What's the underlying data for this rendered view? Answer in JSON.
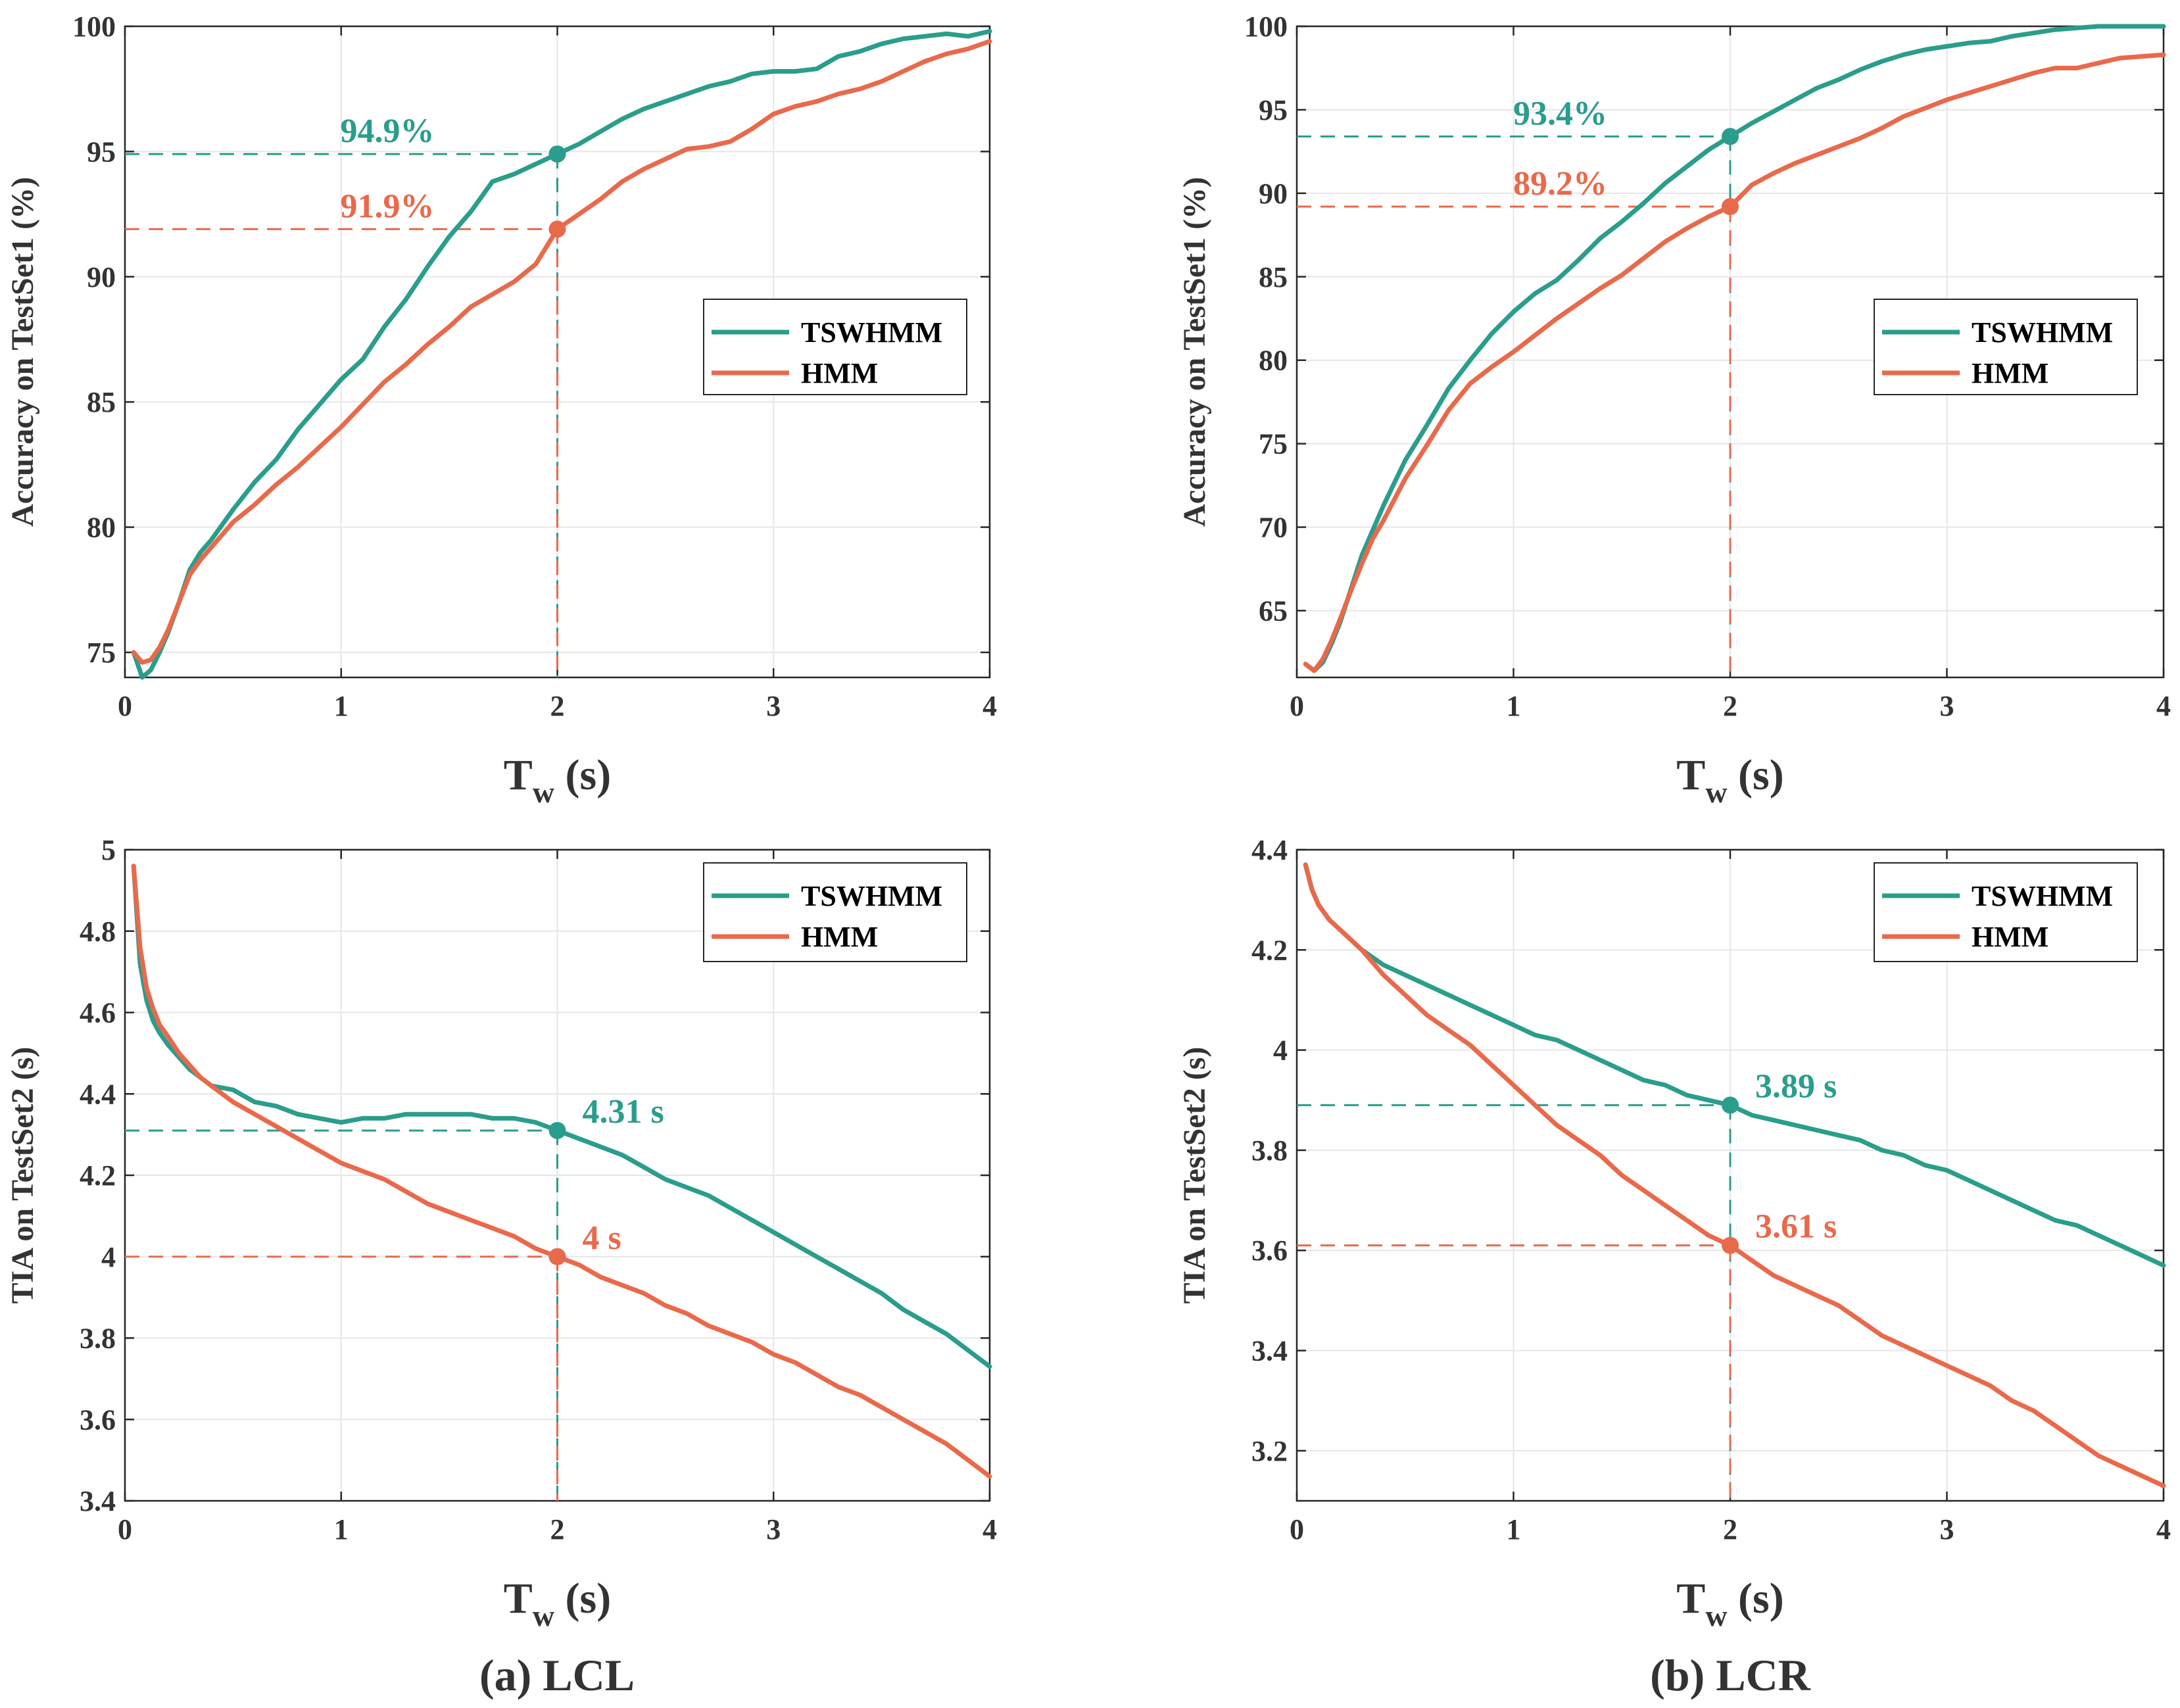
{
  "colors": {
    "TSWHMM": "#2A9D8C",
    "HMM": "#E9694B",
    "grid": "#e6e6e6",
    "axis": "#262626"
  },
  "captions": [
    "(a) LCL",
    "(b) LCR"
  ],
  "chart_data": [
    {
      "id": "a-top",
      "type": "line",
      "xlabel": "T",
      "xlabel_sub": "w",
      "xlabel_unit": " (s)",
      "ylabel": "Accuracy on TestSet1 (%)",
      "xlim": [
        0,
        4
      ],
      "ylim": [
        74,
        100
      ],
      "xticks": [
        0,
        1,
        2,
        3,
        4
      ],
      "yticks": [
        75,
        80,
        85,
        90,
        95,
        100
      ],
      "grid": true,
      "legend": {
        "position": "right-middle",
        "entries": [
          "TSWHMM",
          "HMM"
        ]
      },
      "series": [
        {
          "name": "TSWHMM",
          "x": [
            0.04,
            0.08,
            0.12,
            0.16,
            0.2,
            0.25,
            0.3,
            0.35,
            0.4,
            0.5,
            0.6,
            0.7,
            0.8,
            0.9,
            1.0,
            1.1,
            1.2,
            1.3,
            1.4,
            1.5,
            1.6,
            1.7,
            1.8,
            1.9,
            2.0,
            2.1,
            2.2,
            2.3,
            2.4,
            2.5,
            2.6,
            2.7,
            2.8,
            2.9,
            3.0,
            3.1,
            3.2,
            3.3,
            3.4,
            3.5,
            3.6,
            3.7,
            3.8,
            3.9,
            4.0
          ],
          "y": [
            75.0,
            74.0,
            74.3,
            75.0,
            75.8,
            77.0,
            78.3,
            79.0,
            79.5,
            80.7,
            81.8,
            82.7,
            83.9,
            84.9,
            85.9,
            86.7,
            88.0,
            89.1,
            90.4,
            91.6,
            92.6,
            93.8,
            94.1,
            94.5,
            94.9,
            95.3,
            95.8,
            96.3,
            96.7,
            97.0,
            97.3,
            97.6,
            97.8,
            98.1,
            98.2,
            98.2,
            98.3,
            98.8,
            99.0,
            99.3,
            99.5,
            99.6,
            99.7,
            99.6,
            99.8
          ]
        },
        {
          "name": "HMM",
          "x": [
            0.04,
            0.08,
            0.12,
            0.16,
            0.2,
            0.25,
            0.3,
            0.35,
            0.4,
            0.5,
            0.6,
            0.7,
            0.8,
            0.9,
            1.0,
            1.1,
            1.2,
            1.3,
            1.4,
            1.5,
            1.6,
            1.7,
            1.8,
            1.9,
            2.0,
            2.1,
            2.2,
            2.3,
            2.4,
            2.5,
            2.6,
            2.7,
            2.8,
            2.9,
            3.0,
            3.1,
            3.2,
            3.3,
            3.4,
            3.5,
            3.6,
            3.7,
            3.8,
            3.9,
            4.0
          ],
          "y": [
            75.0,
            74.6,
            74.7,
            75.2,
            75.9,
            77.0,
            78.1,
            78.7,
            79.2,
            80.2,
            80.9,
            81.7,
            82.4,
            83.2,
            84.0,
            84.9,
            85.8,
            86.5,
            87.3,
            88.0,
            88.8,
            89.3,
            89.8,
            90.5,
            91.9,
            92.5,
            93.1,
            93.8,
            94.3,
            94.7,
            95.1,
            95.2,
            95.4,
            95.9,
            96.5,
            96.8,
            97.0,
            97.3,
            97.5,
            97.8,
            98.2,
            98.6,
            98.9,
            99.1,
            99.4
          ]
        }
      ],
      "annotations": [
        {
          "series": "TSWHMM",
          "x": 2,
          "y": 94.9,
          "label": "94.9%"
        },
        {
          "series": "HMM",
          "x": 2,
          "y": 91.9,
          "label": "91.9%"
        }
      ]
    },
    {
      "id": "b-top",
      "type": "line",
      "xlabel": "T",
      "xlabel_sub": "w",
      "xlabel_unit": " (s)",
      "ylabel": "Accuracy on TestSet1 (%)",
      "xlim": [
        0,
        4
      ],
      "ylim": [
        61,
        100
      ],
      "xticks": [
        0,
        1,
        2,
        3,
        4
      ],
      "yticks": [
        65,
        70,
        75,
        80,
        85,
        90,
        95,
        100
      ],
      "grid": true,
      "legend": {
        "position": "right-middle",
        "entries": [
          "TSWHMM",
          "HMM"
        ]
      },
      "series": [
        {
          "name": "TSWHMM",
          "x": [
            0.04,
            0.08,
            0.12,
            0.16,
            0.2,
            0.25,
            0.3,
            0.35,
            0.4,
            0.5,
            0.6,
            0.7,
            0.8,
            0.9,
            1.0,
            1.1,
            1.2,
            1.3,
            1.4,
            1.5,
            1.6,
            1.7,
            1.8,
            1.9,
            2.0,
            2.1,
            2.2,
            2.3,
            2.4,
            2.5,
            2.6,
            2.7,
            2.8,
            2.9,
            3.0,
            3.1,
            3.2,
            3.3,
            3.4,
            3.5,
            3.6,
            3.7,
            3.8,
            3.9,
            4.0
          ],
          "y": [
            61.8,
            61.4,
            61.9,
            63.0,
            64.3,
            66.3,
            68.3,
            69.8,
            71.3,
            74.0,
            76.1,
            78.3,
            80.0,
            81.6,
            82.9,
            84.0,
            84.8,
            86.0,
            87.3,
            88.3,
            89.4,
            90.6,
            91.6,
            92.6,
            93.4,
            94.2,
            94.9,
            95.6,
            96.3,
            96.8,
            97.4,
            97.9,
            98.3,
            98.6,
            98.8,
            99.0,
            99.1,
            99.4,
            99.6,
            99.8,
            99.9,
            100.0,
            100.0,
            100.0,
            100.0
          ]
        },
        {
          "name": "HMM",
          "x": [
            0.04,
            0.08,
            0.12,
            0.16,
            0.2,
            0.25,
            0.3,
            0.35,
            0.4,
            0.5,
            0.6,
            0.7,
            0.8,
            0.9,
            1.0,
            1.1,
            1.2,
            1.3,
            1.4,
            1.5,
            1.6,
            1.7,
            1.8,
            1.9,
            2.0,
            2.1,
            2.2,
            2.3,
            2.4,
            2.5,
            2.6,
            2.7,
            2.8,
            2.9,
            3.0,
            3.1,
            3.2,
            3.3,
            3.4,
            3.5,
            3.6,
            3.7,
            3.8,
            3.9,
            4.0
          ],
          "y": [
            61.8,
            61.4,
            62.1,
            63.2,
            64.5,
            66.2,
            67.8,
            69.3,
            70.4,
            72.9,
            74.9,
            77.0,
            78.6,
            79.6,
            80.5,
            81.5,
            82.5,
            83.4,
            84.3,
            85.1,
            86.1,
            87.1,
            87.9,
            88.6,
            89.2,
            90.5,
            91.2,
            91.8,
            92.3,
            92.8,
            93.3,
            93.9,
            94.6,
            95.1,
            95.6,
            96.0,
            96.4,
            96.8,
            97.2,
            97.5,
            97.5,
            97.8,
            98.1,
            98.2,
            98.3
          ]
        }
      ],
      "annotations": [
        {
          "series": "TSWHMM",
          "x": 2,
          "y": 93.4,
          "label": "93.4%"
        },
        {
          "series": "HMM",
          "x": 2,
          "y": 89.2,
          "label": "89.2%"
        }
      ]
    },
    {
      "id": "a-bottom",
      "type": "line",
      "xlabel": "T",
      "xlabel_sub": "w",
      "xlabel_unit": " (s)",
      "ylabel": "TIA on TestSet2 (s)",
      "xlim": [
        0,
        4
      ],
      "ylim": [
        3.4,
        5.0
      ],
      "xticks": [
        0,
        1,
        2,
        3,
        4
      ],
      "yticks": [
        3.4,
        3.6,
        3.8,
        4,
        4.2,
        4.4,
        4.6,
        4.8,
        5
      ],
      "grid": true,
      "legend": {
        "position": "top-right",
        "entries": [
          "TSWHMM",
          "HMM"
        ]
      },
      "series": [
        {
          "name": "TSWHMM",
          "x": [
            0.04,
            0.07,
            0.1,
            0.13,
            0.16,
            0.2,
            0.25,
            0.3,
            0.35,
            0.4,
            0.5,
            0.6,
            0.7,
            0.8,
            0.9,
            1.0,
            1.1,
            1.2,
            1.3,
            1.4,
            1.5,
            1.6,
            1.7,
            1.8,
            1.9,
            2.0,
            2.1,
            2.2,
            2.3,
            2.4,
            2.5,
            2.6,
            2.7,
            2.8,
            2.9,
            3.0,
            3.1,
            3.2,
            3.3,
            3.4,
            3.5,
            3.6,
            3.7,
            3.8,
            3.9,
            4.0
          ],
          "y": [
            4.96,
            4.72,
            4.63,
            4.58,
            4.55,
            4.52,
            4.49,
            4.46,
            4.44,
            4.42,
            4.41,
            4.38,
            4.37,
            4.35,
            4.34,
            4.33,
            4.34,
            4.34,
            4.35,
            4.35,
            4.35,
            4.35,
            4.34,
            4.34,
            4.33,
            4.31,
            4.29,
            4.27,
            4.25,
            4.22,
            4.19,
            4.17,
            4.15,
            4.12,
            4.09,
            4.06,
            4.03,
            4.0,
            3.97,
            3.94,
            3.91,
            3.87,
            3.84,
            3.81,
            3.77,
            3.73
          ]
        },
        {
          "name": "HMM",
          "x": [
            0.04,
            0.07,
            0.1,
            0.13,
            0.16,
            0.2,
            0.25,
            0.3,
            0.35,
            0.4,
            0.5,
            0.6,
            0.7,
            0.8,
            0.9,
            1.0,
            1.1,
            1.2,
            1.3,
            1.4,
            1.5,
            1.6,
            1.7,
            1.8,
            1.9,
            2.0,
            2.1,
            2.2,
            2.3,
            2.4,
            2.5,
            2.6,
            2.7,
            2.8,
            2.9,
            3.0,
            3.1,
            3.2,
            3.3,
            3.4,
            3.5,
            3.6,
            3.7,
            3.8,
            3.9,
            4.0
          ],
          "y": [
            4.96,
            4.76,
            4.66,
            4.61,
            4.57,
            4.54,
            4.5,
            4.47,
            4.44,
            4.42,
            4.38,
            4.35,
            4.32,
            4.29,
            4.26,
            4.23,
            4.21,
            4.19,
            4.16,
            4.13,
            4.11,
            4.09,
            4.07,
            4.05,
            4.02,
            4.0,
            3.98,
            3.95,
            3.93,
            3.91,
            3.88,
            3.86,
            3.83,
            3.81,
            3.79,
            3.76,
            3.74,
            3.71,
            3.68,
            3.66,
            3.63,
            3.6,
            3.57,
            3.54,
            3.5,
            3.46
          ]
        }
      ],
      "annotations": [
        {
          "series": "TSWHMM",
          "x": 2,
          "y": 4.31,
          "label": "4.31 s"
        },
        {
          "series": "HMM",
          "x": 2,
          "y": 4.0,
          "label": "4 s"
        }
      ]
    },
    {
      "id": "b-bottom",
      "type": "line",
      "xlabel": "T",
      "xlabel_sub": "w",
      "xlabel_unit": " (s)",
      "ylabel": "TIA on TestSet2 (s)",
      "xlim": [
        0,
        4
      ],
      "ylim": [
        3.1,
        4.4
      ],
      "xticks": [
        0,
        1,
        2,
        3,
        4
      ],
      "yticks": [
        3.2,
        3.4,
        3.6,
        3.8,
        4,
        4.2,
        4.4
      ],
      "grid": true,
      "legend": {
        "position": "top-right",
        "entries": [
          "TSWHMM",
          "HMM"
        ]
      },
      "series": [
        {
          "name": "TSWHMM",
          "x": [
            0.04,
            0.07,
            0.1,
            0.15,
            0.2,
            0.25,
            0.3,
            0.4,
            0.5,
            0.6,
            0.7,
            0.8,
            0.9,
            1.0,
            1.1,
            1.2,
            1.3,
            1.4,
            1.5,
            1.6,
            1.7,
            1.8,
            1.9,
            2.0,
            2.1,
            2.2,
            2.3,
            2.4,
            2.5,
            2.6,
            2.7,
            2.8,
            2.9,
            3.0,
            3.1,
            3.2,
            3.3,
            3.4,
            3.5,
            3.6,
            3.7,
            3.8,
            3.9,
            4.0
          ],
          "y": [
            4.37,
            4.32,
            4.29,
            4.26,
            4.24,
            4.22,
            4.2,
            4.17,
            4.15,
            4.13,
            4.11,
            4.09,
            4.07,
            4.05,
            4.03,
            4.02,
            4.0,
            3.98,
            3.96,
            3.94,
            3.93,
            3.91,
            3.9,
            3.89,
            3.87,
            3.86,
            3.85,
            3.84,
            3.83,
            3.82,
            3.8,
            3.79,
            3.77,
            3.76,
            3.74,
            3.72,
            3.7,
            3.68,
            3.66,
            3.65,
            3.63,
            3.61,
            3.59,
            3.57
          ]
        },
        {
          "name": "HMM",
          "x": [
            0.04,
            0.07,
            0.1,
            0.15,
            0.2,
            0.25,
            0.3,
            0.4,
            0.5,
            0.6,
            0.7,
            0.8,
            0.9,
            1.0,
            1.1,
            1.2,
            1.3,
            1.4,
            1.5,
            1.6,
            1.7,
            1.8,
            1.9,
            2.0,
            2.1,
            2.2,
            2.3,
            2.4,
            2.5,
            2.6,
            2.7,
            2.8,
            2.9,
            3.0,
            3.1,
            3.2,
            3.3,
            3.4,
            3.5,
            3.6,
            3.7,
            3.8,
            3.9,
            4.0
          ],
          "y": [
            4.37,
            4.32,
            4.29,
            4.26,
            4.24,
            4.22,
            4.2,
            4.15,
            4.11,
            4.07,
            4.04,
            4.01,
            3.97,
            3.93,
            3.89,
            3.85,
            3.82,
            3.79,
            3.75,
            3.72,
            3.69,
            3.66,
            3.63,
            3.61,
            3.58,
            3.55,
            3.53,
            3.51,
            3.49,
            3.46,
            3.43,
            3.41,
            3.39,
            3.37,
            3.35,
            3.33,
            3.3,
            3.28,
            3.25,
            3.22,
            3.19,
            3.17,
            3.15,
            3.13
          ]
        }
      ],
      "annotations": [
        {
          "series": "TSWHMM",
          "x": 2,
          "y": 3.89,
          "label": "3.89 s"
        },
        {
          "series": "HMM",
          "x": 2,
          "y": 3.61,
          "label": "3.61 s"
        }
      ]
    }
  ]
}
